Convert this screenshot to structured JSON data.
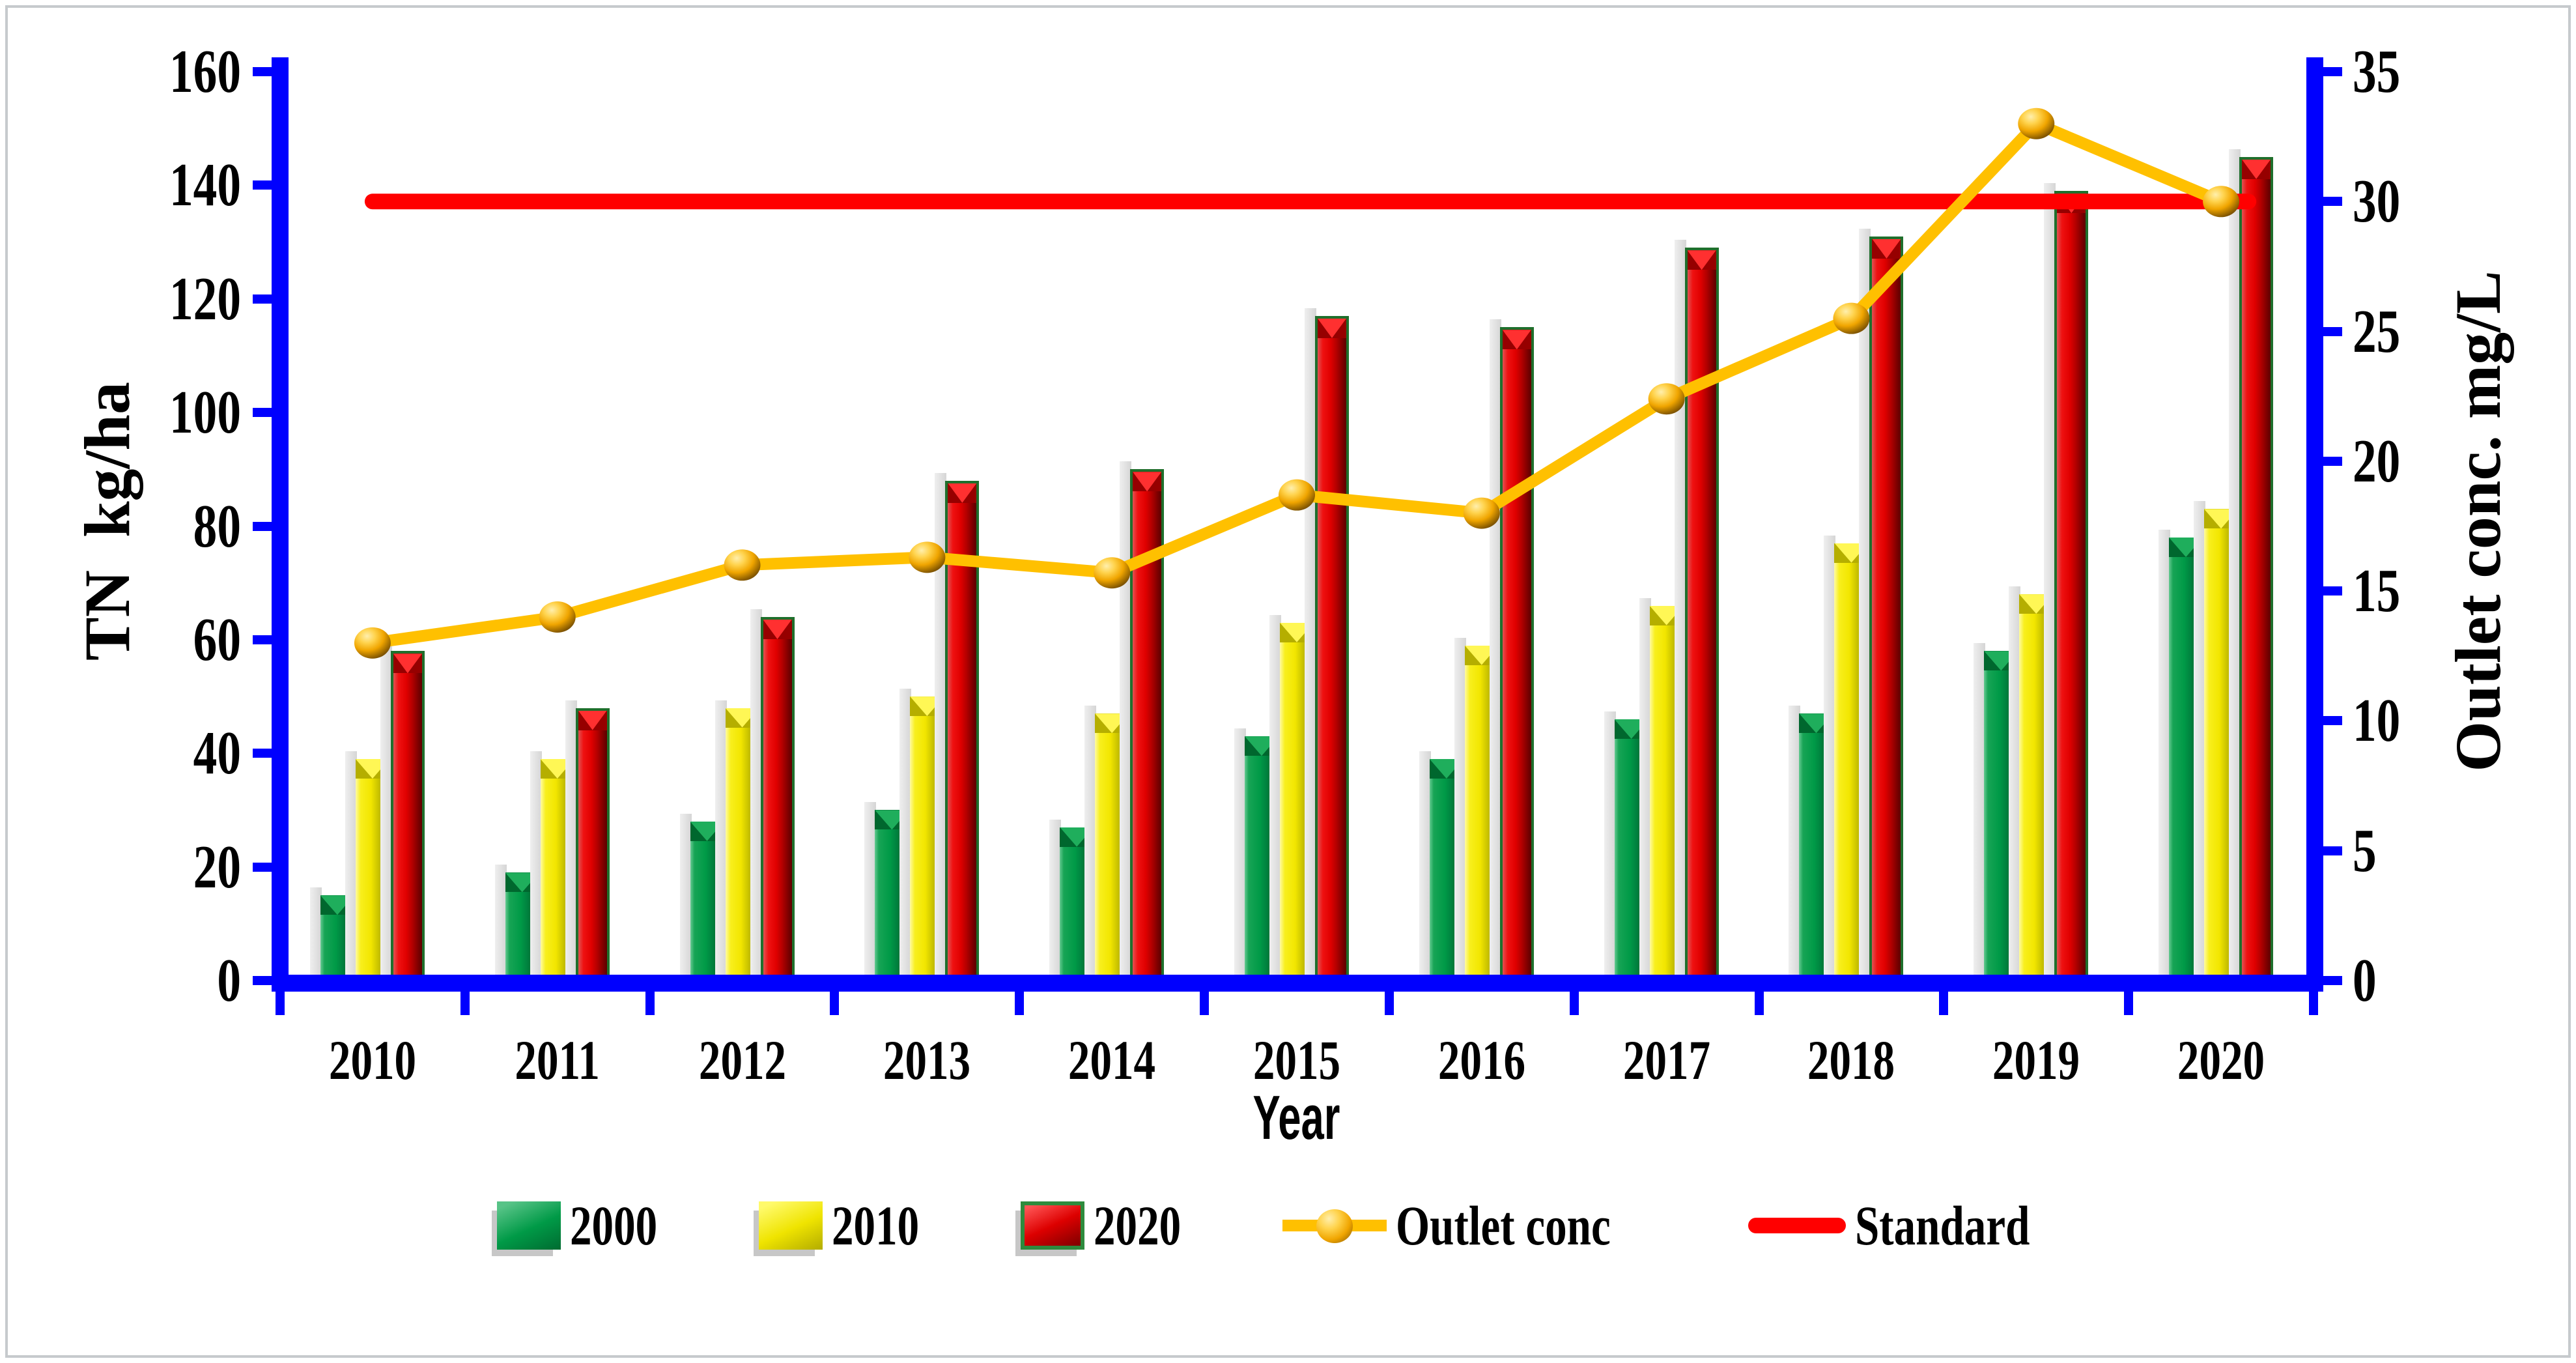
{
  "chart_data": {
    "type": "bar+line",
    "categories": [
      "2010",
      "2011",
      "2012",
      "2013",
      "2014",
      "2015",
      "2016",
      "2017",
      "2018",
      "2019",
      "2020"
    ],
    "bar_series": [
      {
        "name": "2000",
        "color": "#00A14B",
        "values": [
          15,
          19,
          28,
          30,
          27,
          43,
          39,
          46,
          47,
          58,
          78
        ]
      },
      {
        "name": "2010",
        "color": "#F2E600",
        "values": [
          39,
          39,
          48,
          50,
          47,
          63,
          59,
          66,
          77,
          68,
          83
        ]
      },
      {
        "name": "2020",
        "color": "#DE0000",
        "values": [
          58,
          48,
          64,
          88,
          90,
          117,
          115,
          129,
          131,
          139,
          145
        ]
      }
    ],
    "line_series": [
      {
        "name": "Outlet conc",
        "color": "#FFC000",
        "axis": "right",
        "values": [
          13,
          14,
          16,
          16.3,
          15.7,
          18.7,
          18,
          22.4,
          25.5,
          33,
          30
        ]
      },
      {
        "name": "Standard",
        "color": "#FF0000",
        "axis": "right",
        "values": [
          30,
          30,
          30,
          30,
          30,
          30,
          30,
          30,
          30,
          30,
          30
        ]
      }
    ],
    "left_axis": {
      "title": "TN  kg/ha",
      "min": 0,
      "max": 160,
      "step": 20
    },
    "right_axis": {
      "title": "Outlet conc. mg/L",
      "min": 0,
      "max": 35,
      "step": 5
    },
    "x_axis": {
      "title": "Year"
    },
    "axis_color": "#0000FE",
    "grid": "off",
    "legend_position": "bottom",
    "legend_items": [
      {
        "label": "2000",
        "key": "bar-green"
      },
      {
        "label": "2010",
        "key": "bar-yellow"
      },
      {
        "label": "2020",
        "key": "bar-red"
      },
      {
        "label": "Outlet conc",
        "key": "gold-line-marker"
      },
      {
        "label": "Standard",
        "key": "red-line"
      }
    ]
  }
}
